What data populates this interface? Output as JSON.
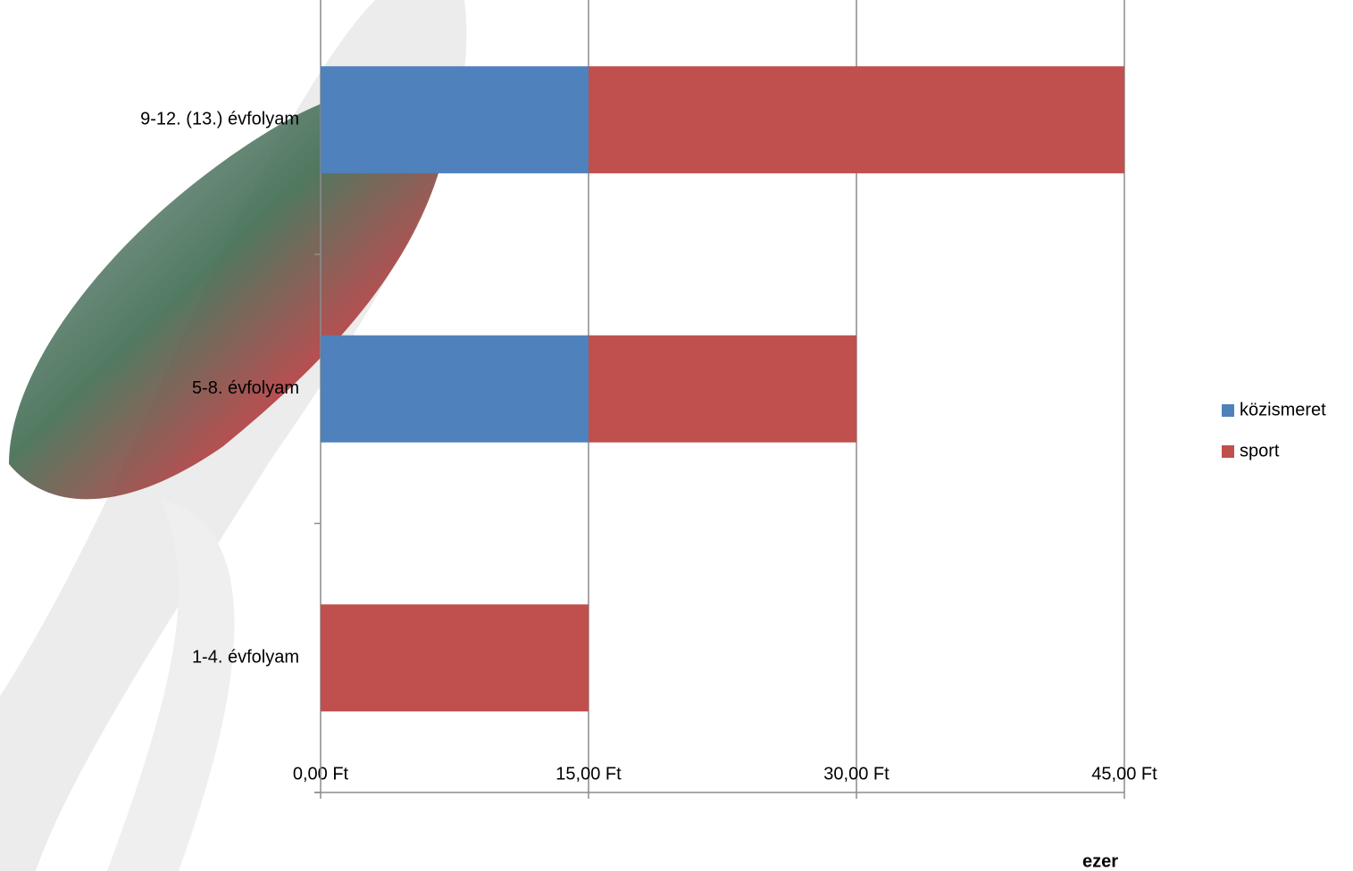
{
  "chart_data": {
    "type": "stacked-barh",
    "categories": [
      "1-4. évfolyam",
      "5-8. évfolyam",
      "9-12. (13.) évfolyam"
    ],
    "series": [
      {
        "name": "közismeret",
        "color": "#4f81bd",
        "values": [
          0,
          15,
          15
        ]
      },
      {
        "name": "sport",
        "color": "#c0504d",
        "values": [
          15,
          15,
          30
        ]
      }
    ],
    "xlim": [
      0,
      45
    ],
    "xticks": [
      {
        "value": 0,
        "label": "0,00 Ft"
      },
      {
        "value": 15,
        "label": "15,00 Ft"
      },
      {
        "value": 30,
        "label": "30,00 Ft"
      },
      {
        "value": 45,
        "label": "45,00 Ft"
      }
    ],
    "xlabel": "ezer",
    "grid": true,
    "legend": "right"
  }
}
